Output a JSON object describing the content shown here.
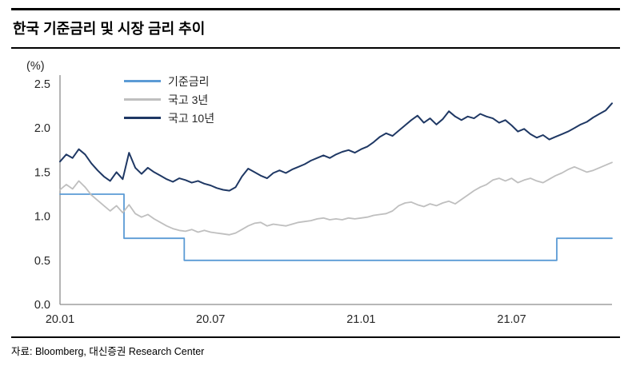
{
  "page": {
    "title": "한국 기준금리 및 시장 금리 추이",
    "source": "자료: Bloomberg, 대신증권 Research Center"
  },
  "chart_data": {
    "type": "line",
    "title": "한국 기준금리 및 시장 금리 추이",
    "xlabel": "",
    "ylabel": "(%)",
    "ylim": [
      0.0,
      2.5
    ],
    "yticks": [
      0.0,
      0.5,
      1.0,
      1.5,
      2.0,
      2.5
    ],
    "xlim": [
      0,
      22
    ],
    "x_unit": "months since 2020-01",
    "xticks": [
      {
        "pos": 0,
        "label": "20.01"
      },
      {
        "pos": 6,
        "label": "20.07"
      },
      {
        "pos": 12,
        "label": "21.01"
      },
      {
        "pos": 18,
        "label": "21.07"
      }
    ],
    "grid": false,
    "legend_position": "top-left-inside",
    "axis_color": "#8C8C8C",
    "series": [
      {
        "id": "base-rate",
        "name": "기준금리",
        "color": "#5B9BD5",
        "width": 1.8,
        "points": [
          [
            0,
            1.25
          ],
          [
            2.55,
            1.25
          ],
          [
            2.55,
            0.75
          ],
          [
            4.95,
            0.75
          ],
          [
            4.95,
            0.5
          ],
          [
            19.8,
            0.5
          ],
          [
            19.8,
            0.75
          ],
          [
            22,
            0.75
          ]
        ]
      },
      {
        "id": "ktb-3y",
        "name": "국고 3년",
        "color": "#BFBFBF",
        "width": 1.8,
        "points": [
          [
            0,
            1.3
          ],
          [
            0.25,
            1.36
          ],
          [
            0.5,
            1.31
          ],
          [
            0.75,
            1.4
          ],
          [
            1,
            1.33
          ],
          [
            1.25,
            1.24
          ],
          [
            1.5,
            1.18
          ],
          [
            1.75,
            1.12
          ],
          [
            2,
            1.06
          ],
          [
            2.25,
            1.12
          ],
          [
            2.5,
            1.04
          ],
          [
            2.75,
            1.13
          ],
          [
            3,
            1.03
          ],
          [
            3.25,
            0.99
          ],
          [
            3.5,
            1.02
          ],
          [
            3.75,
            0.97
          ],
          [
            4,
            0.93
          ],
          [
            4.25,
            0.89
          ],
          [
            4.5,
            0.86
          ],
          [
            4.75,
            0.84
          ],
          [
            5,
            0.83
          ],
          [
            5.25,
            0.85
          ],
          [
            5.5,
            0.82
          ],
          [
            5.75,
            0.84
          ],
          [
            6,
            0.82
          ],
          [
            6.25,
            0.81
          ],
          [
            6.5,
            0.8
          ],
          [
            6.75,
            0.79
          ],
          [
            7,
            0.81
          ],
          [
            7.25,
            0.85
          ],
          [
            7.5,
            0.89
          ],
          [
            7.75,
            0.92
          ],
          [
            8,
            0.93
          ],
          [
            8.25,
            0.89
          ],
          [
            8.5,
            0.91
          ],
          [
            8.75,
            0.9
          ],
          [
            9,
            0.89
          ],
          [
            9.25,
            0.91
          ],
          [
            9.5,
            0.93
          ],
          [
            9.75,
            0.94
          ],
          [
            10,
            0.95
          ],
          [
            10.25,
            0.97
          ],
          [
            10.5,
            0.98
          ],
          [
            10.75,
            0.96
          ],
          [
            11,
            0.97
          ],
          [
            11.25,
            0.96
          ],
          [
            11.5,
            0.98
          ],
          [
            11.75,
            0.97
          ],
          [
            12,
            0.98
          ],
          [
            12.25,
            0.99
          ],
          [
            12.5,
            1.01
          ],
          [
            12.75,
            1.02
          ],
          [
            13,
            1.03
          ],
          [
            13.25,
            1.06
          ],
          [
            13.5,
            1.12
          ],
          [
            13.75,
            1.15
          ],
          [
            14,
            1.16
          ],
          [
            14.25,
            1.13
          ],
          [
            14.5,
            1.11
          ],
          [
            14.75,
            1.14
          ],
          [
            15,
            1.12
          ],
          [
            15.25,
            1.15
          ],
          [
            15.5,
            1.17
          ],
          [
            15.75,
            1.14
          ],
          [
            16,
            1.19
          ],
          [
            16.25,
            1.24
          ],
          [
            16.5,
            1.29
          ],
          [
            16.75,
            1.33
          ],
          [
            17,
            1.36
          ],
          [
            17.25,
            1.41
          ],
          [
            17.5,
            1.43
          ],
          [
            17.75,
            1.4
          ],
          [
            18,
            1.43
          ],
          [
            18.25,
            1.38
          ],
          [
            18.5,
            1.41
          ],
          [
            18.75,
            1.43
          ],
          [
            19,
            1.4
          ],
          [
            19.25,
            1.38
          ],
          [
            19.5,
            1.42
          ],
          [
            19.75,
            1.46
          ],
          [
            20,
            1.49
          ],
          [
            20.25,
            1.53
          ],
          [
            20.5,
            1.56
          ],
          [
            20.75,
            1.53
          ],
          [
            21,
            1.5
          ],
          [
            21.25,
            1.52
          ],
          [
            21.5,
            1.55
          ],
          [
            21.75,
            1.58
          ],
          [
            22,
            1.61
          ]
        ]
      },
      {
        "id": "ktb-10y",
        "name": "국고 10년",
        "color": "#1F3864",
        "width": 2,
        "points": [
          [
            0,
            1.62
          ],
          [
            0.25,
            1.7
          ],
          [
            0.5,
            1.66
          ],
          [
            0.75,
            1.76
          ],
          [
            1,
            1.7
          ],
          [
            1.25,
            1.6
          ],
          [
            1.5,
            1.52
          ],
          [
            1.75,
            1.45
          ],
          [
            2,
            1.4
          ],
          [
            2.25,
            1.5
          ],
          [
            2.5,
            1.42
          ],
          [
            2.75,
            1.72
          ],
          [
            3,
            1.55
          ],
          [
            3.25,
            1.48
          ],
          [
            3.5,
            1.55
          ],
          [
            3.75,
            1.5
          ],
          [
            4,
            1.46
          ],
          [
            4.25,
            1.42
          ],
          [
            4.5,
            1.39
          ],
          [
            4.75,
            1.43
          ],
          [
            5,
            1.41
          ],
          [
            5.25,
            1.38
          ],
          [
            5.5,
            1.4
          ],
          [
            5.75,
            1.37
          ],
          [
            6,
            1.35
          ],
          [
            6.25,
            1.32
          ],
          [
            6.5,
            1.3
          ],
          [
            6.75,
            1.29
          ],
          [
            7,
            1.33
          ],
          [
            7.25,
            1.45
          ],
          [
            7.5,
            1.54
          ],
          [
            7.75,
            1.5
          ],
          [
            8,
            1.46
          ],
          [
            8.25,
            1.43
          ],
          [
            8.5,
            1.49
          ],
          [
            8.75,
            1.52
          ],
          [
            9,
            1.49
          ],
          [
            9.25,
            1.53
          ],
          [
            9.5,
            1.56
          ],
          [
            9.75,
            1.59
          ],
          [
            10,
            1.63
          ],
          [
            10.25,
            1.66
          ],
          [
            10.5,
            1.69
          ],
          [
            10.75,
            1.66
          ],
          [
            11,
            1.7
          ],
          [
            11.25,
            1.73
          ],
          [
            11.5,
            1.75
          ],
          [
            11.75,
            1.72
          ],
          [
            12,
            1.76
          ],
          [
            12.25,
            1.79
          ],
          [
            12.5,
            1.84
          ],
          [
            12.75,
            1.9
          ],
          [
            13,
            1.94
          ],
          [
            13.25,
            1.91
          ],
          [
            13.5,
            1.97
          ],
          [
            13.75,
            2.03
          ],
          [
            14,
            2.09
          ],
          [
            14.25,
            2.14
          ],
          [
            14.5,
            2.06
          ],
          [
            14.75,
            2.11
          ],
          [
            15,
            2.04
          ],
          [
            15.25,
            2.1
          ],
          [
            15.5,
            2.19
          ],
          [
            15.75,
            2.13
          ],
          [
            16,
            2.09
          ],
          [
            16.25,
            2.13
          ],
          [
            16.5,
            2.11
          ],
          [
            16.75,
            2.16
          ],
          [
            17,
            2.13
          ],
          [
            17.25,
            2.11
          ],
          [
            17.5,
            2.06
          ],
          [
            17.75,
            2.09
          ],
          [
            18,
            2.03
          ],
          [
            18.25,
            1.96
          ],
          [
            18.5,
            1.99
          ],
          [
            18.75,
            1.93
          ],
          [
            19,
            1.89
          ],
          [
            19.25,
            1.92
          ],
          [
            19.5,
            1.87
          ],
          [
            19.75,
            1.9
          ],
          [
            20,
            1.93
          ],
          [
            20.25,
            1.96
          ],
          [
            20.5,
            2
          ],
          [
            20.75,
            2.04
          ],
          [
            21,
            2.07
          ],
          [
            21.25,
            2.12
          ],
          [
            21.5,
            2.16
          ],
          [
            21.75,
            2.2
          ],
          [
            22,
            2.28
          ]
        ]
      }
    ]
  }
}
